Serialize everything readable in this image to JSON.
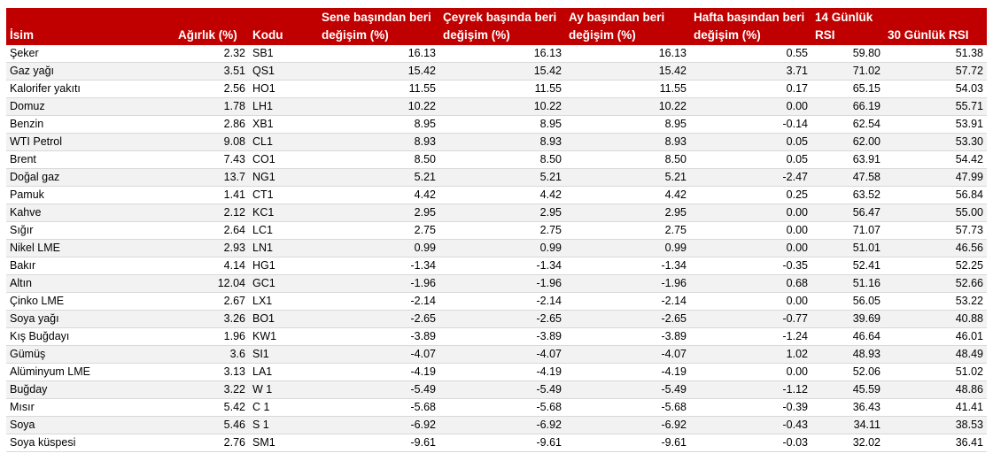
{
  "table": {
    "headers": [
      "İsim",
      "Ağırlık (%)",
      "Kodu",
      "Sene başından beri değişim (%)",
      "Çeyrek başında beri değişim (%)",
      "Ay başından beri değişim (%)",
      "Hafta başından beri değişim (%)",
      "14 Günlük RSI",
      "30 Günlük RSI"
    ],
    "rows": [
      [
        "Şeker",
        "2.32",
        "SB1",
        "16.13",
        "16.13",
        "16.13",
        "0.55",
        "59.80",
        "51.38"
      ],
      [
        "Gaz yağı",
        "3.51",
        "QS1",
        "15.42",
        "15.42",
        "15.42",
        "3.71",
        "71.02",
        "57.72"
      ],
      [
        "Kalorifer yakıtı",
        "2.56",
        "HO1",
        "11.55",
        "11.55",
        "11.55",
        "0.17",
        "65.15",
        "54.03"
      ],
      [
        "Domuz",
        "1.78",
        "LH1",
        "10.22",
        "10.22",
        "10.22",
        "0.00",
        "66.19",
        "55.71"
      ],
      [
        "Benzin",
        "2.86",
        "XB1",
        "8.95",
        "8.95",
        "8.95",
        "-0.14",
        "62.54",
        "53.91"
      ],
      [
        "WTI Petrol",
        "9.08",
        "CL1",
        "8.93",
        "8.93",
        "8.93",
        "0.05",
        "62.00",
        "53.30"
      ],
      [
        "Brent",
        "7.43",
        "CO1",
        "8.50",
        "8.50",
        "8.50",
        "0.05",
        "63.91",
        "54.42"
      ],
      [
        "Doğal gaz",
        "13.7",
        "NG1",
        "5.21",
        "5.21",
        "5.21",
        "-2.47",
        "47.58",
        "47.99"
      ],
      [
        "Pamuk",
        "1.41",
        "CT1",
        "4.42",
        "4.42",
        "4.42",
        "0.25",
        "63.52",
        "56.84"
      ],
      [
        "Kahve",
        "2.12",
        "KC1",
        "2.95",
        "2.95",
        "2.95",
        "0.00",
        "56.47",
        "55.00"
      ],
      [
        "Sığır",
        "2.64",
        "LC1",
        "2.75",
        "2.75",
        "2.75",
        "0.00",
        "71.07",
        "57.73"
      ],
      [
        "Nikel LME",
        "2.93",
        "LN1",
        "0.99",
        "0.99",
        "0.99",
        "0.00",
        "51.01",
        "46.56"
      ],
      [
        "Bakır",
        "4.14",
        "HG1",
        "-1.34",
        "-1.34",
        "-1.34",
        "-0.35",
        "52.41",
        "52.25"
      ],
      [
        "Altın",
        "12.04",
        "GC1",
        "-1.96",
        "-1.96",
        "-1.96",
        "0.68",
        "51.16",
        "52.66"
      ],
      [
        "Çinko LME",
        "2.67",
        "LX1",
        "-2.14",
        "-2.14",
        "-2.14",
        "0.00",
        "56.05",
        "53.22"
      ],
      [
        "Soya yağı",
        "3.26",
        "BO1",
        "-2.65",
        "-2.65",
        "-2.65",
        "-0.77",
        "39.69",
        "40.88"
      ],
      [
        "Kış Buğdayı",
        "1.96",
        "KW1",
        "-3.89",
        "-3.89",
        "-3.89",
        "-1.24",
        "46.64",
        "46.01"
      ],
      [
        "Gümüş",
        "3.6",
        "SI1",
        "-4.07",
        "-4.07",
        "-4.07",
        "1.02",
        "48.93",
        "48.49"
      ],
      [
        "Alüminyum LME",
        "3.13",
        "LA1",
        "-4.19",
        "-4.19",
        "-4.19",
        "0.00",
        "52.06",
        "51.02"
      ],
      [
        "Buğday",
        "3.22",
        "W 1",
        "-5.49",
        "-5.49",
        "-5.49",
        "-1.12",
        "45.59",
        "48.86"
      ],
      [
        "Mısır",
        "5.42",
        "C 1",
        "-5.68",
        "-5.68",
        "-5.68",
        "-0.39",
        "36.43",
        "41.41"
      ],
      [
        "Soya",
        "5.46",
        "S 1",
        "-6.92",
        "-6.92",
        "-6.92",
        "-0.43",
        "34.11",
        "38.53"
      ],
      [
        "Soya küspesi",
        "2.76",
        "SM1",
        "-9.61",
        "-9.61",
        "-9.61",
        "-0.03",
        "32.02",
        "36.41"
      ]
    ]
  },
  "colors": {
    "header_background": "#c00000",
    "header_text": "#ffffff",
    "row_alt_background": "#f2f2f2",
    "grid_line": "#d9d9d9"
  }
}
